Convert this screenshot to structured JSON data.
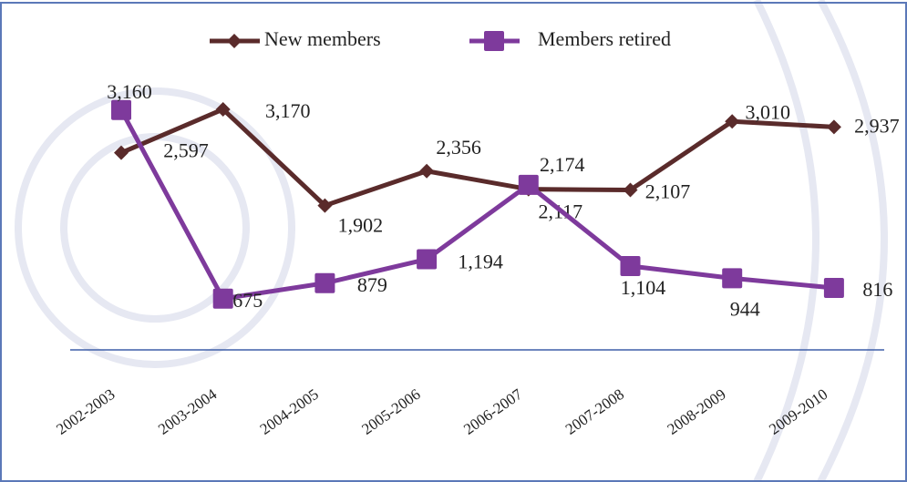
{
  "chart_data": {
    "type": "line",
    "categories": [
      "2002-2003",
      "2003-2004",
      "2004-2005",
      "2005-2006",
      "2006-2007",
      "2007-2008",
      "2008-2009",
      "2009-2010"
    ],
    "series": [
      {
        "name": "New members",
        "color": "#5a2b2b",
        "marker": "diamond",
        "values": [
          2597,
          3170,
          1902,
          2356,
          2117,
          2107,
          3010,
          2937
        ],
        "value_labels": [
          "2,597",
          "3,170",
          "1,902",
          "2,356",
          "2,117",
          "2,107",
          "3,010",
          "2,937"
        ]
      },
      {
        "name": "Members retired",
        "color": "#7e3a9c",
        "marker": "square",
        "values": [
          3160,
          675,
          879,
          1194,
          2174,
          1104,
          944,
          816
        ],
        "value_labels": [
          "3,160",
          "675",
          "879",
          "1,194",
          "2,174",
          "1,104",
          "944",
          "816"
        ]
      }
    ]
  }
}
